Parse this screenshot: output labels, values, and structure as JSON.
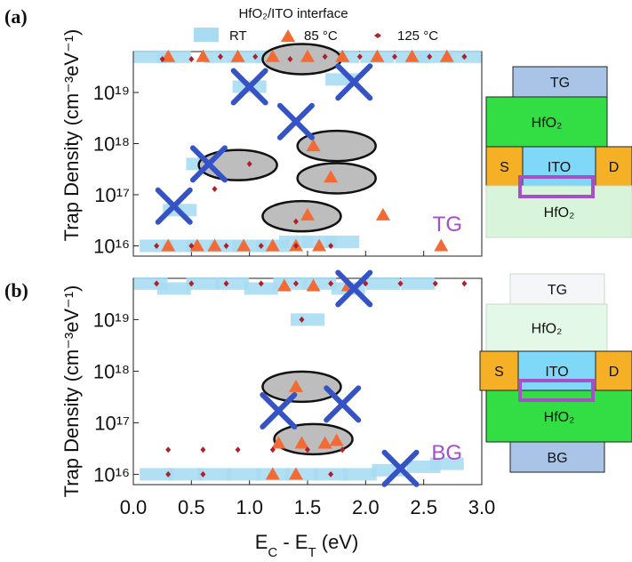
{
  "chart_data": [
    {
      "panel_label": "(a)",
      "type": "scatter",
      "ylabel": "Trap Density (cm⁻³eV⁻¹)",
      "xlim": [
        0.0,
        3.0
      ],
      "ylim_log10": [
        15.8,
        19.8
      ],
      "yscale": "log",
      "ytick_labels": [
        "10¹⁶",
        "10¹⁷",
        "10¹⁸",
        "10¹⁹"
      ],
      "tag": "TG",
      "legend": {
        "title": "HfO₂/ITO interface",
        "entries": [
          {
            "label": "RT",
            "marker": "square",
            "color": "#87ceeb"
          },
          {
            "label": "85 °C",
            "marker": "triangle",
            "color": "#f26b35"
          },
          {
            "label": "125 °C",
            "marker": "diamond",
            "color": "#b22222"
          }
        ]
      },
      "series": [
        {
          "name": "RT",
          "points": [
            [
              0.15,
              5e+19
            ],
            [
              0.35,
              5e+19
            ],
            [
              0.75,
              5e+19
            ],
            [
              1.0,
              5e+19
            ],
            [
              1.2,
              5e+19
            ],
            [
              1.8,
              5e+19
            ],
            [
              2.1,
              5e+19
            ],
            [
              2.4,
              5e+19
            ],
            [
              2.6,
              5e+19
            ],
            [
              2.85,
              5e+19
            ],
            [
              1.0,
              1.3e+19
            ],
            [
              1.8,
              1.8e+19
            ],
            [
              0.4,
              5e+16
            ],
            [
              0.6,
              4e+17
            ],
            [
              1.0,
              4e+17
            ],
            [
              0.2,
              1e+16
            ],
            [
              0.4,
              1e+16
            ],
            [
              0.6,
              1e+16
            ],
            [
              0.8,
              1e+16
            ],
            [
              1.0,
              1e+16
            ],
            [
              1.2,
              1e+16
            ],
            [
              1.4,
              1.2e+16
            ],
            [
              1.6,
              1.2e+16
            ],
            [
              1.8,
              1.2e+16
            ]
          ]
        },
        {
          "name": "85 °C",
          "points": [
            [
              0.3,
              5e+19
            ],
            [
              0.6,
              5e+19
            ],
            [
              0.9,
              5e+19
            ],
            [
              1.2,
              5e+19
            ],
            [
              1.5,
              5e+19
            ],
            [
              1.8,
              5e+19
            ],
            [
              2.1,
              5e+19
            ],
            [
              2.4,
              5e+19
            ],
            [
              2.7,
              5e+19
            ],
            [
              1.55,
              9e+17
            ],
            [
              1.7,
              2.2e+17
            ],
            [
              1.5,
              4e+16
            ],
            [
              2.15,
              4e+16
            ],
            [
              0.3,
              1e+16
            ],
            [
              0.55,
              1e+16
            ],
            [
              0.7,
              1e+16
            ],
            [
              0.95,
              1e+16
            ],
            [
              1.2,
              1e+16
            ],
            [
              1.4,
              1e+16
            ],
            [
              1.6,
              1e+16
            ],
            [
              2.65,
              1e+16
            ]
          ]
        },
        {
          "name": "125 °C",
          "points": [
            [
              0.25,
              4.5e+19
            ],
            [
              0.5,
              4.5e+19
            ],
            [
              0.75,
              5e+19
            ],
            [
              1.05,
              5e+19
            ],
            [
              1.35,
              4.5e+19
            ],
            [
              1.65,
              5e+19
            ],
            [
              1.95,
              5e+19
            ],
            [
              2.25,
              5e+19
            ],
            [
              2.55,
              5e+19
            ],
            [
              2.85,
              5e+19
            ],
            [
              1.0,
              4e+17
            ],
            [
              0.7,
              1.3e+17
            ],
            [
              1.4,
              3e+16
            ],
            [
              0.2,
              1e+16
            ],
            [
              0.5,
              1e+16
            ],
            [
              0.8,
              1e+16
            ],
            [
              1.1,
              1e+16
            ],
            [
              1.4,
              1e+16
            ],
            [
              1.7,
              1e+16
            ]
          ]
        },
        {
          "name": "X markers",
          "points": [
            [
              1.0,
              1.3e+19
            ],
            [
              1.9,
              1.6e+19
            ],
            [
              1.4,
              2.7e+18
            ],
            [
              0.65,
              4e+17
            ],
            [
              0.35,
              6e+16
            ]
          ]
        }
      ],
      "highlight_ellipses": [
        [
          1.45,
          4.5e+19
        ],
        [
          1.75,
          9e+17
        ],
        [
          0.9,
          3.8e+17
        ],
        [
          1.75,
          2.1e+17
        ],
        [
          1.45,
          3.8e+16
        ]
      ]
    },
    {
      "panel_label": "(b)",
      "type": "scatter",
      "ylabel": "Trap Density (cm⁻³eV⁻¹)",
      "xlabel": "E_C - E_T (eV)",
      "xtick_labels": [
        "0.0",
        "0.5",
        "1.0",
        "1.5",
        "2.0",
        "2.5",
        "3.0"
      ],
      "xlim": [
        0.0,
        3.0
      ],
      "ylim_log10": [
        15.8,
        19.8
      ],
      "yscale": "log",
      "ytick_labels": [
        "10¹⁶",
        "10¹⁷",
        "10¹⁸",
        "10¹⁹"
      ],
      "tag": "BG",
      "series": [
        {
          "name": "RT",
          "points": [
            [
              0.15,
              5e+19
            ],
            [
              0.35,
              4e+19
            ],
            [
              0.6,
              5e+19
            ],
            [
              0.85,
              5e+19
            ],
            [
              1.1,
              4e+19
            ],
            [
              1.35,
              5e+19
            ],
            [
              1.6,
              5e+19
            ],
            [
              1.85,
              4e+19
            ],
            [
              2.15,
              5e+19
            ],
            [
              2.45,
              5e+19
            ],
            [
              1.5,
              1e+19
            ],
            [
              0.2,
              1e+16
            ],
            [
              0.45,
              1e+16
            ],
            [
              0.7,
              1e+16
            ],
            [
              0.95,
              1e+16
            ],
            [
              1.2,
              1e+16
            ],
            [
              1.45,
              1e+16
            ],
            [
              1.7,
              1e+16
            ],
            [
              1.95,
              1e+16
            ],
            [
              2.2,
              1.2e+16
            ],
            [
              2.5,
              1.4e+16
            ],
            [
              2.7,
              1.6e+16
            ]
          ]
        },
        {
          "name": "85 °C",
          "points": [
            [
              1.3,
              4.5e+19
            ],
            [
              1.55,
              4.5e+19
            ],
            [
              1.85,
              4.5e+19
            ],
            [
              1.4,
              5e+17
            ],
            [
              1.25,
              4e+16
            ],
            [
              1.45,
              4e+16
            ],
            [
              1.65,
              4e+16
            ],
            [
              1.75,
              4.5e+16
            ],
            [
              1.2,
              1e+16
            ],
            [
              1.4,
              1e+16
            ]
          ]
        },
        {
          "name": "125 °C",
          "points": [
            [
              0.2,
              5e+19
            ],
            [
              0.5,
              5e+19
            ],
            [
              0.8,
              5e+19
            ],
            [
              1.1,
              5e+19
            ],
            [
              1.4,
              5e+19
            ],
            [
              1.7,
              5e+19
            ],
            [
              2.0,
              5e+19
            ],
            [
              2.3,
              5e+19
            ],
            [
              2.6,
              5e+19
            ],
            [
              2.85,
              5e+19
            ],
            [
              1.45,
              1e+19
            ],
            [
              0.3,
              3e+16
            ],
            [
              0.6,
              3e+16
            ],
            [
              0.9,
              3e+16
            ],
            [
              1.2,
              3e+16
            ],
            [
              1.5,
              3e+16
            ],
            [
              1.8,
              3e+16
            ],
            [
              0.3,
              1e+16
            ],
            [
              0.6,
              1e+16
            ],
            [
              1.7,
              1e+16
            ]
          ]
        },
        {
          "name": "X markers",
          "points": [
            [
              1.9,
              4e+19
            ],
            [
              1.25,
              1.7e+17
            ],
            [
              1.8,
              2.3e+17
            ],
            [
              2.3,
              1.3e+16
            ]
          ]
        }
      ],
      "highlight_ellipses": [
        [
          1.45,
          5e+17
        ],
        [
          1.55,
          4.8e+16
        ]
      ]
    }
  ],
  "devices": [
    {
      "layers": [
        {
          "label": "TG",
          "color": "#a9c4e6"
        },
        {
          "label": "HfO₂",
          "color": "#33dd44"
        },
        {
          "label": "S",
          "color": "#f5b025"
        },
        {
          "label": "ITO",
          "color": "#7fd8f7"
        },
        {
          "label": "D",
          "color": "#f5b025"
        },
        {
          "label": "HfO₂",
          "color": "#d8f5dc",
          "faded": true
        }
      ]
    },
    {
      "layers": [
        {
          "label": "TG",
          "color": "#f4f6f8",
          "faded": true
        },
        {
          "label": "HfO₂",
          "color": "#e3f8e6",
          "faded": true
        },
        {
          "label": "S",
          "color": "#f5b025"
        },
        {
          "label": "ITO",
          "color": "#7fd8f7"
        },
        {
          "label": "D",
          "color": "#f5b025"
        },
        {
          "label": "HfO₂",
          "color": "#33dd44"
        },
        {
          "label": "BG",
          "color": "#a9c4e6"
        }
      ]
    }
  ],
  "colors": {
    "rt": "#a8dcf2",
    "c85": "#f26b35",
    "c125": "#b0202a",
    "x": "#3653c6",
    "accent": "#a64fc8",
    "interface_box": "#a64fc8"
  }
}
